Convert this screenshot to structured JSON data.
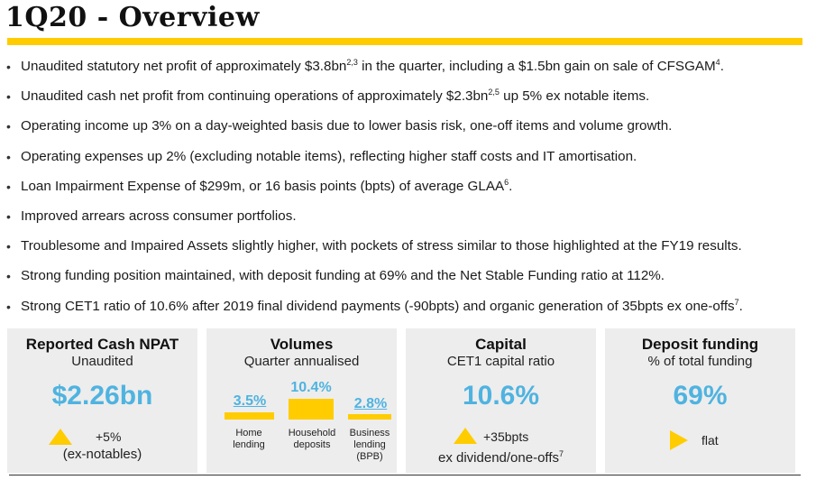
{
  "page": {
    "title": "1Q20 - Overview",
    "accent_color": "#FFCC00",
    "value_color": "#4FB3E0"
  },
  "bullets": [
    {
      "text": "Unaudited statutory net profit of approximately $3.8bn",
      "sup": "2,3",
      "text2": " in the quarter, including a $1.5bn gain on sale of CFSGAM",
      "sup2": "4",
      "text3": "."
    },
    {
      "text": "Unaudited cash net profit from continuing operations of approximately $2.3bn",
      "sup": "2,5",
      "text2": " up 5% ex notable items.",
      "sup2": "",
      "text3": ""
    },
    {
      "text": "Operating income up 3% on a day-weighted basis due to lower basis risk, one-off items and volume growth.",
      "sup": "",
      "text2": "",
      "sup2": "",
      "text3": ""
    },
    {
      "text": "Operating expenses up 2% (excluding notable items), reflecting higher staff costs and IT amortisation.",
      "sup": "",
      "text2": "",
      "sup2": "",
      "text3": ""
    },
    {
      "text": "Loan Impairment Expense of $299m, or 16 basis points (bpts) of average GLAA",
      "sup": "6",
      "text2": ".",
      "sup2": "",
      "text3": ""
    },
    {
      "text": "Improved arrears across consumer portfolios.",
      "sup": "",
      "text2": "",
      "sup2": "",
      "text3": ""
    },
    {
      "text": "Troublesome and Impaired Assets slightly higher, with pockets of stress similar to those highlighted at the FY19 results.",
      "sup": "",
      "text2": "",
      "sup2": "",
      "text3": ""
    },
    {
      "text": "Strong funding position maintained, with deposit funding at 69% and the Net Stable Funding ratio at 112%.",
      "sup": "",
      "text2": "",
      "sup2": "",
      "text3": ""
    },
    {
      "text": "Strong CET1 ratio of 10.6% after 2019 final dividend payments (-90bpts) and organic generation of 35bpts ex one-offs",
      "sup": "7",
      "text2": ".",
      "sup2": "",
      "text3": ""
    }
  ],
  "cards": {
    "npat": {
      "title": "Reported Cash NPAT",
      "subtitle": "Unaudited",
      "value": "$2.26bn",
      "change": "+5%",
      "note": "(ex-notables)"
    },
    "volumes": {
      "title": "Volumes",
      "subtitle": "Quarter annualised",
      "items": [
        {
          "value": "3.5%",
          "label1": "Home",
          "label2": "lending",
          "label3": ""
        },
        {
          "value": "10.4%",
          "label1": "Household",
          "label2": "deposits",
          "label3": ""
        },
        {
          "value": "2.8%",
          "label1": "Business",
          "label2": "lending",
          "label3": "(BPB)"
        }
      ]
    },
    "capital": {
      "title": "Capital",
      "subtitle": "CET1 capital ratio",
      "value": "10.6%",
      "change": "+35bpts",
      "note": "ex dividend/one-offs",
      "note_sup": "7"
    },
    "deposit": {
      "title": "Deposit funding",
      "subtitle": "% of total funding",
      "value": "69%",
      "change": "flat"
    }
  }
}
